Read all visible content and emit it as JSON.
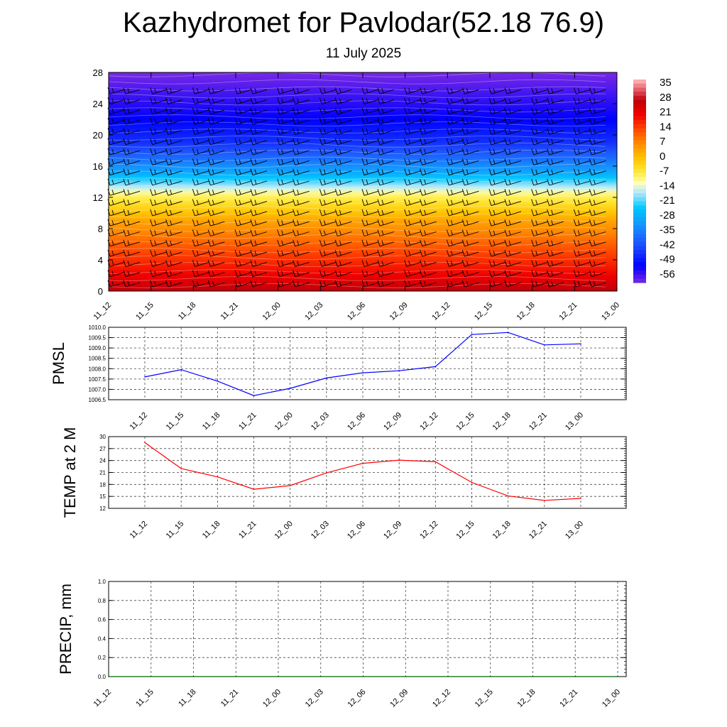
{
  "header": {
    "title": "Kazhydromet for Pavlodar(52.18 76.9)",
    "subtitle": "11 July 2025"
  },
  "chart_data": [
    {
      "type": "heatmap",
      "name": "temperature-cross-section",
      "y_ticks": [
        "0",
        "4",
        "8",
        "12",
        "16",
        "20",
        "24",
        "28"
      ],
      "ylim": [
        0,
        28
      ],
      "x_ticks": [
        "11_12",
        "11_15",
        "11_18",
        "11_21",
        "12_00",
        "12_03",
        "12_06",
        "12_09",
        "12_12",
        "12_15",
        "12_18",
        "12_21",
        "13_00"
      ],
      "colorbar_labels": [
        "35",
        "28",
        "21",
        "14",
        "7",
        "0",
        "-7",
        "-14",
        "-21",
        "-28",
        "-35",
        "-42",
        "-49",
        "-56"
      ],
      "colorbar_range": [
        -60,
        38
      ],
      "level_temperature": [
        {
          "level": 0,
          "value": 28
        },
        {
          "level": 2,
          "value": 21
        },
        {
          "level": 5,
          "value": 14
        },
        {
          "level": 9,
          "value": 4
        },
        {
          "level": 12.5,
          "value": -10
        },
        {
          "level": 13,
          "value": -14
        },
        {
          "level": 15,
          "value": -28
        },
        {
          "level": 17,
          "value": -38
        },
        {
          "level": 19,
          "value": -46
        },
        {
          "level": 22,
          "value": -52
        },
        {
          "level": 28,
          "value": -60
        }
      ],
      "wind_barbs": "shown",
      "colors": {
        "warm": "#c80000",
        "neutral": "#ffff80",
        "cold": "#0000ff"
      }
    },
    {
      "type": "line",
      "name": "pmsl",
      "ylabel": "PMSL",
      "x": [
        "11_12",
        "11_15",
        "11_18",
        "11_21",
        "12_00",
        "12_03",
        "12_06",
        "12_09",
        "12_12",
        "12_15",
        "12_18",
        "12_21",
        "13_00"
      ],
      "values": [
        1007.6,
        1007.95,
        1007.4,
        1006.7,
        1007.05,
        1007.55,
        1007.8,
        1007.9,
        1008.1,
        1009.65,
        1009.75,
        1009.15,
        1009.2
      ],
      "ylim": [
        1006.5,
        1010.0
      ],
      "y_ticks": [
        "1006.5",
        "1007.0",
        "1007.5",
        "1008.0",
        "1008.5",
        "1009.0",
        "1009.5",
        "1010.0"
      ],
      "color": "#0000ff",
      "grid": true
    },
    {
      "type": "line",
      "name": "temp-2m",
      "ylabel": "TEMP at 2 M",
      "x": [
        "11_12",
        "11_15",
        "11_18",
        "11_21",
        "12_00",
        "12_03",
        "12_06",
        "12_09",
        "12_12",
        "12_15",
        "12_18",
        "12_21",
        "13_00"
      ],
      "values": [
        28.5,
        22.0,
        19.9,
        16.8,
        17.7,
        20.9,
        23.3,
        24.1,
        23.7,
        18.5,
        15.1,
        14.0,
        14.5
      ],
      "ylim": [
        12,
        30
      ],
      "y_ticks": [
        "12",
        "15",
        "18",
        "21",
        "24",
        "27",
        "30"
      ],
      "color": "#ff0000",
      "grid": true
    },
    {
      "type": "line",
      "name": "precip",
      "ylabel": "PRECIP, mm",
      "x": [
        "11_12",
        "11_15",
        "11_18",
        "11_21",
        "12_00",
        "12_03",
        "12_06",
        "12_09",
        "12_12",
        "12_15",
        "12_18",
        "12_21",
        "13_00"
      ],
      "values": [
        0,
        0,
        0,
        0,
        0,
        0,
        0,
        0,
        0,
        0,
        0,
        0,
        0
      ],
      "ylim": [
        0,
        1
      ],
      "y_ticks": [
        "0.0",
        "0.2",
        "0.4",
        "0.6",
        "0.8",
        "1.0"
      ],
      "color": "#006400",
      "grid": true
    }
  ]
}
